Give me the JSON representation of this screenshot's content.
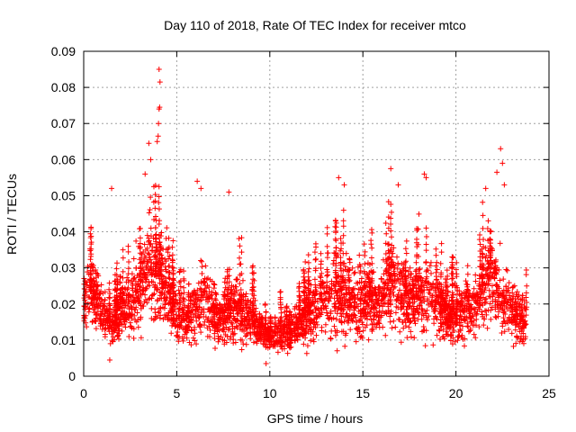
{
  "chart_data": {
    "type": "scatter",
    "title": "Day 110 of 2018, Rate Of TEC Index for receiver mtco",
    "xlabel": "GPS time / hours",
    "ylabel": "ROTI / TECUs",
    "xlim": [
      0,
      25
    ],
    "ylim": [
      0,
      0.09
    ],
    "xticks": [
      "0",
      "5",
      "10",
      "15",
      "20",
      "25"
    ],
    "xtick_values": [
      0,
      5,
      10,
      15,
      20,
      25
    ],
    "yticks": [
      "0",
      "0.01",
      "0.02",
      "0.03",
      "0.04",
      "0.05",
      "0.06",
      "0.07",
      "0.08",
      "0.09"
    ],
    "ytick_values": [
      0,
      0.01,
      0.02,
      0.03,
      0.04,
      0.05,
      0.06,
      0.07,
      0.08,
      0.09
    ],
    "grid": true,
    "marker": "plus",
    "color": "#ff0000",
    "envelope": {
      "hours": [
        0,
        0.5,
        1,
        1.5,
        2,
        2.5,
        3,
        3.5,
        4,
        4.5,
        5,
        5.5,
        6,
        6.5,
        7,
        7.5,
        8,
        8.5,
        9,
        9.5,
        10,
        10.5,
        11,
        11.5,
        12,
        12.5,
        13,
        13.5,
        14,
        14.5,
        15,
        15.5,
        16,
        16.5,
        17,
        17.5,
        18,
        18.5,
        19,
        19.5,
        20,
        20.5,
        21,
        21.5,
        22,
        22.5,
        23,
        23.5,
        23.8
      ],
      "center": [
        0.02,
        0.024,
        0.018,
        0.014,
        0.018,
        0.02,
        0.025,
        0.03,
        0.026,
        0.022,
        0.017,
        0.015,
        0.018,
        0.022,
        0.017,
        0.016,
        0.02,
        0.018,
        0.016,
        0.013,
        0.011,
        0.012,
        0.012,
        0.014,
        0.016,
        0.019,
        0.021,
        0.022,
        0.022,
        0.02,
        0.019,
        0.02,
        0.022,
        0.025,
        0.022,
        0.02,
        0.021,
        0.023,
        0.019,
        0.016,
        0.017,
        0.018,
        0.02,
        0.024,
        0.027,
        0.022,
        0.018,
        0.016,
        0.016
      ],
      "spread": [
        0.006,
        0.007,
        0.006,
        0.005,
        0.007,
        0.008,
        0.01,
        0.011,
        0.011,
        0.008,
        0.006,
        0.006,
        0.009,
        0.009,
        0.007,
        0.006,
        0.008,
        0.007,
        0.006,
        0.004,
        0.003,
        0.004,
        0.004,
        0.005,
        0.007,
        0.008,
        0.009,
        0.01,
        0.01,
        0.008,
        0.008,
        0.008,
        0.009,
        0.01,
        0.009,
        0.008,
        0.009,
        0.01,
        0.008,
        0.006,
        0.007,
        0.007,
        0.008,
        0.01,
        0.01,
        0.009,
        0.007,
        0.006,
        0.006
      ]
    },
    "peaks": [
      {
        "x": 3.3,
        "y": 0.056
      },
      {
        "x": 3.6,
        "y": 0.06
      },
      {
        "x": 3.5,
        "y": 0.0645
      },
      {
        "x": 3.95,
        "y": 0.065
      },
      {
        "x": 4.0,
        "y": 0.0665
      },
      {
        "x": 4.02,
        "y": 0.07
      },
      {
        "x": 4.05,
        "y": 0.074
      },
      {
        "x": 4.08,
        "y": 0.0745
      },
      {
        "x": 4.1,
        "y": 0.0815
      },
      {
        "x": 4.05,
        "y": 0.085
      },
      {
        "x": 16.5,
        "y": 0.0575
      },
      {
        "x": 18.3,
        "y": 0.056
      },
      {
        "x": 18.4,
        "y": 0.055
      },
      {
        "x": 22.4,
        "y": 0.063
      },
      {
        "x": 22.5,
        "y": 0.059
      },
      {
        "x": 22.2,
        "y": 0.0565
      },
      {
        "x": 22.6,
        "y": 0.053
      },
      {
        "x": 1.5,
        "y": 0.052
      },
      {
        "x": 6.1,
        "y": 0.054
      },
      {
        "x": 6.3,
        "y": 0.052
      },
      {
        "x": 7.8,
        "y": 0.051
      },
      {
        "x": 13.7,
        "y": 0.055
      },
      {
        "x": 14.0,
        "y": 0.053
      },
      {
        "x": 16.9,
        "y": 0.053
      },
      {
        "x": 21.6,
        "y": 0.052
      },
      {
        "x": 9.8,
        "y": 0.0035
      },
      {
        "x": 1.4,
        "y": 0.0045
      }
    ]
  }
}
